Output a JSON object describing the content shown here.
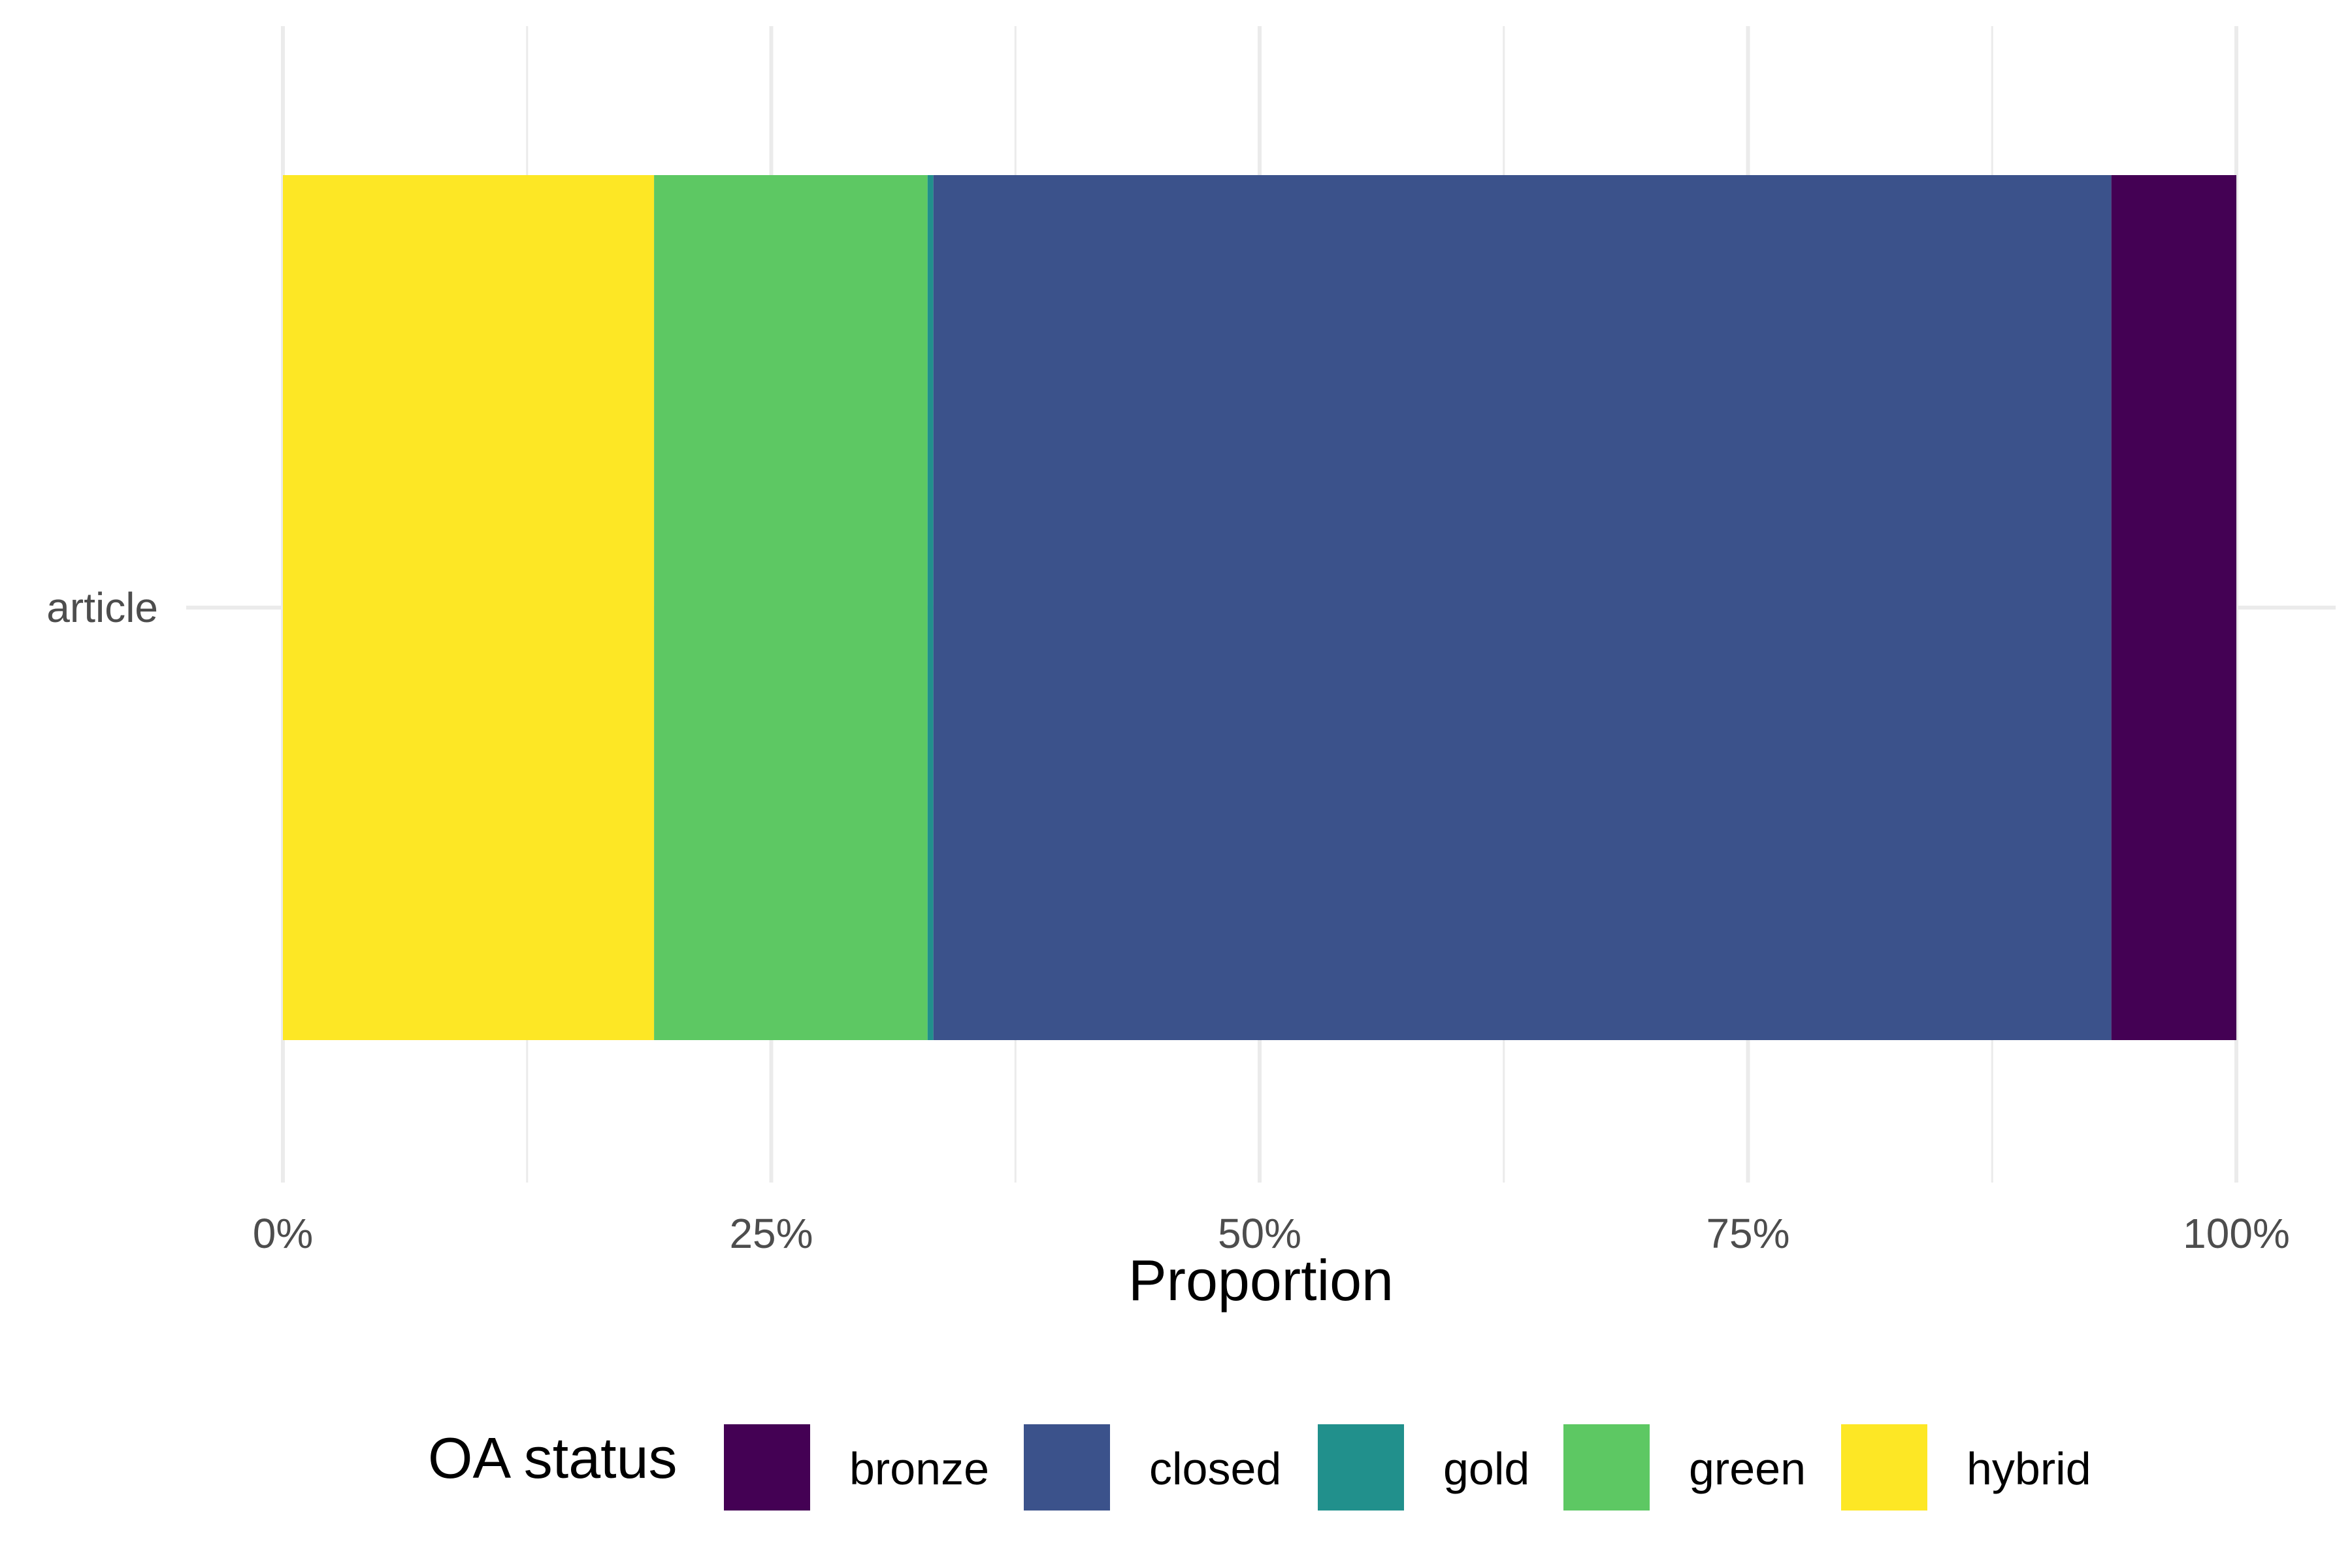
{
  "chart_data": {
    "type": "bar",
    "orientation": "horizontal",
    "stacked": true,
    "normalized": true,
    "categories": [
      "article"
    ],
    "series": [
      {
        "name": "bronze",
        "values": [
          0.064
        ],
        "color": "#440154"
      },
      {
        "name": "closed",
        "values": [
          0.603
        ],
        "color": "#3B528B"
      },
      {
        "name": "gold",
        "values": [
          0.003
        ],
        "color": "#21908C"
      },
      {
        "name": "green",
        "values": [
          0.14
        ],
        "color": "#5DC863"
      },
      {
        "name": "hybrid",
        "values": [
          0.19
        ],
        "color": "#FDE725"
      }
    ],
    "stack_order_left_to_right": [
      "hybrid",
      "green",
      "gold",
      "closed",
      "bronze"
    ],
    "xlim": [
      0,
      1
    ],
    "x_ticks": [
      0,
      0.25,
      0.5,
      0.75,
      1
    ],
    "x_tick_labels": [
      "0%",
      "25%",
      "50%",
      "75%",
      "100%"
    ],
    "xlabel": "Proportion",
    "ylabel": "",
    "legend": {
      "title": "OA status",
      "position": "bottom",
      "entries": [
        "bronze",
        "closed",
        "gold",
        "green",
        "hybrid"
      ]
    },
    "grid": true
  }
}
